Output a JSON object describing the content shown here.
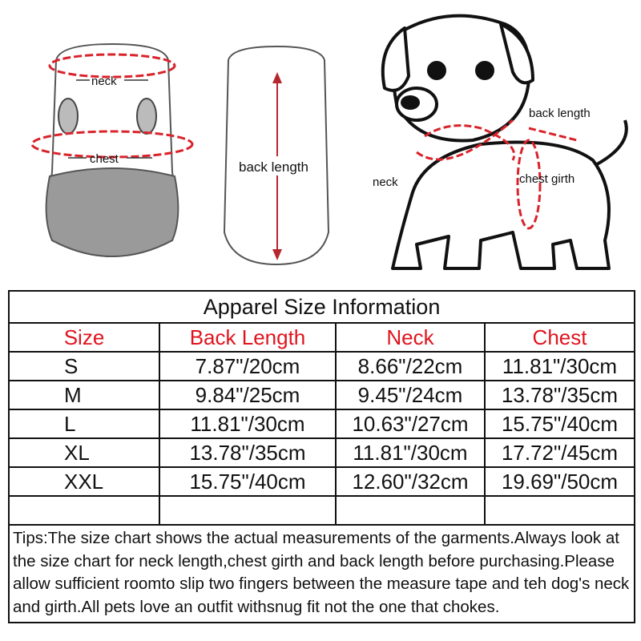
{
  "illustration": {
    "front_labels": {
      "neck": "neck",
      "chest": "chest"
    },
    "back_label": "back length",
    "dog_labels": {
      "back_length": "back length",
      "neck": "neck",
      "chest_girth": "chest girth"
    },
    "accent_color": "#d9232b"
  },
  "table": {
    "title": "Apparel Size Information",
    "headers": [
      "Size",
      "Back Length",
      "Neck",
      "Chest"
    ],
    "header_color": "#e0141e",
    "rows": [
      [
        "S",
        "7.87\"/20cm",
        "8.66\"/22cm",
        "11.81\"/30cm"
      ],
      [
        "M",
        "9.84\"/25cm",
        "9.45\"/24cm",
        "13.78\"/35cm"
      ],
      [
        "L",
        "11.81\"/30cm",
        "10.63\"/27cm",
        "15.75\"/40cm"
      ],
      [
        "XL",
        "13.78\"/35cm",
        "11.81\"/30cm",
        "17.72\"/45cm"
      ],
      [
        "XXL",
        "15.75\"/40cm",
        "12.60\"/32cm",
        "19.69\"/50cm"
      ]
    ],
    "tips": "Tips:The size chart shows the actual measurements of the garments.Always look at the size chart for neck length,chest girth and back length before purchasing.Please allow sufficient roomto slip two fingers between the measure tape and teh dog's neck and girth.All pets love an outfit withsnug fit not the one that chokes."
  }
}
